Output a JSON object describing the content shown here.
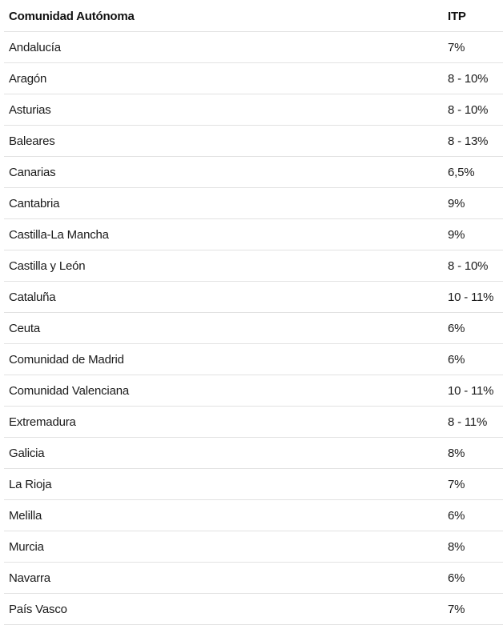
{
  "table": {
    "headers": [
      "Comunidad Autónoma",
      "ITP"
    ],
    "rows": [
      [
        "Andalucía",
        "7%"
      ],
      [
        "Aragón",
        "8 - 10%"
      ],
      [
        "Asturias",
        "8 - 10%"
      ],
      [
        "Baleares",
        "8 - 13%"
      ],
      [
        "Canarias",
        "6,5%"
      ],
      [
        "Cantabria",
        "9%"
      ],
      [
        "Castilla-La Mancha",
        "9%"
      ],
      [
        "Castilla y León",
        "8 - 10%"
      ],
      [
        "Cataluña",
        "10 - 11%"
      ],
      [
        "Ceuta",
        "6%"
      ],
      [
        "Comunidad de Madrid",
        "6%"
      ],
      [
        "Comunidad Valenciana",
        "10 - 11%"
      ],
      [
        "Extremadura",
        "8 - 11%"
      ],
      [
        "Galicia",
        "8%"
      ],
      [
        "La Rioja",
        "7%"
      ],
      [
        "Melilla",
        "6%"
      ],
      [
        "Murcia",
        "8%"
      ],
      [
        "Navarra",
        "6%"
      ],
      [
        "País Vasco",
        "7%"
      ]
    ]
  }
}
